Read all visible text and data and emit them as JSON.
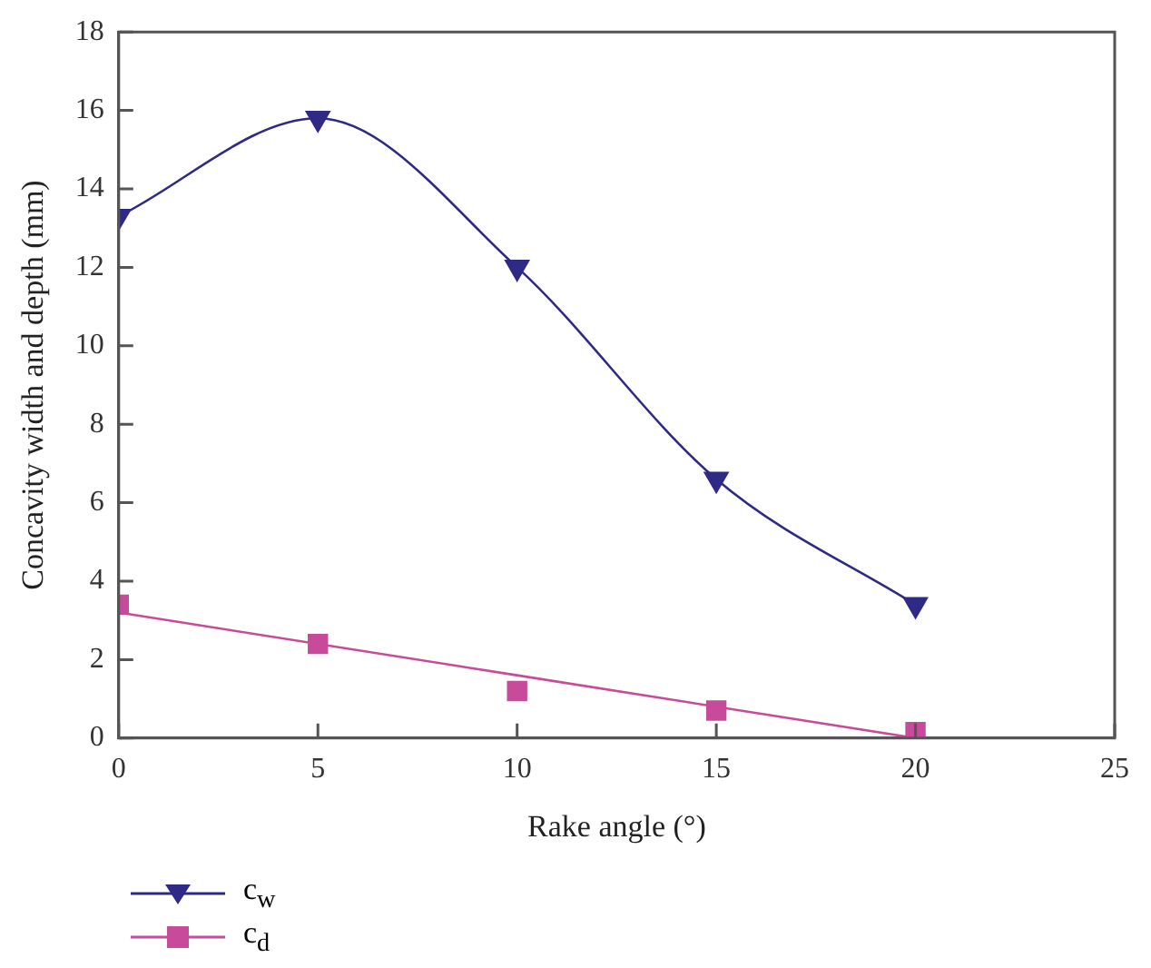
{
  "chart_data": {
    "type": "line",
    "xlabel": "Rake angle (°)",
    "ylabel": "Concavity width and depth (mm)",
    "xlim": [
      0,
      25
    ],
    "xticks": [
      0,
      5,
      10,
      15,
      20,
      25
    ],
    "ylim": [
      0,
      18
    ],
    "yticks": [
      0,
      2,
      4,
      6,
      8,
      10,
      12,
      14,
      16,
      18
    ],
    "grid": false,
    "legend": "bottom left",
    "series": [
      {
        "name": "c$_{w}$",
        "marker": "triangle",
        "color": "#2e2a85",
        "x": [
          0,
          5,
          10,
          15,
          20
        ],
        "values": [
          13.3,
          15.8,
          12.0,
          6.6,
          3.4
        ]
      },
      {
        "name": "c$_{d}$",
        "type": "scatter",
        "marker": "square",
        "color": "#c84a9a",
        "x": [
          0,
          5,
          10,
          15,
          20
        ],
        "values": [
          3.4,
          2.4,
          1.2,
          0.7,
          0.15
        ]
      },
      {
        "marker": "none",
        "color": "#c84a9a",
        "x": [
          0,
          20
        ],
        "values": [
          3.2,
          0
        ]
      }
    ]
  }
}
